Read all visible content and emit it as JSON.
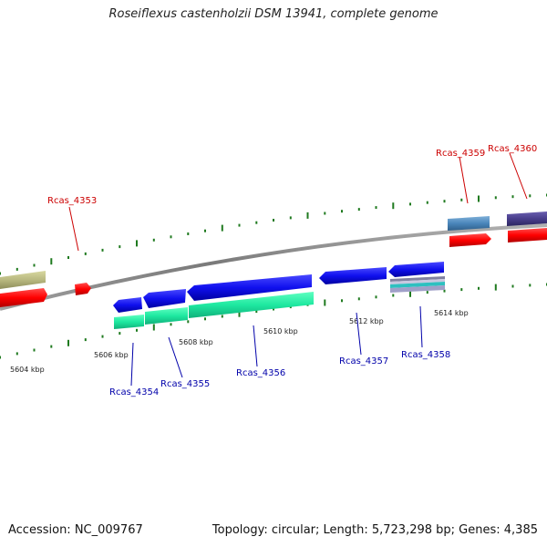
{
  "title": "Roseiflexus castenholzii DSM 13941, complete genome",
  "footer": {
    "accession": "Accession: NC_009767",
    "topology": "Topology: circular; Length: 5,723,298 bp; Genes: 4,385"
  },
  "colors": {
    "forward_label": "#cc0000",
    "reverse_label": "#0000aa",
    "backbone": "#8a8a8a",
    "tick": "#1f7a1f"
  },
  "scale_labels": [
    "5604 kbp",
    "5606 kbp",
    "5608 kbp",
    "5610 kbp",
    "5612 kbp",
    "5614 kbp"
  ],
  "gene_labels": {
    "rcas_4353": "Rcas_4353",
    "rcas_4354": "Rcas_4354",
    "rcas_4355": "Rcas_4355",
    "rcas_4356": "Rcas_4356",
    "rcas_4357": "Rcas_4357",
    "rcas_4358": "Rcas_4358",
    "rcas_4359": "Rcas_4359",
    "rcas_4360": "Rcas_4360"
  }
}
